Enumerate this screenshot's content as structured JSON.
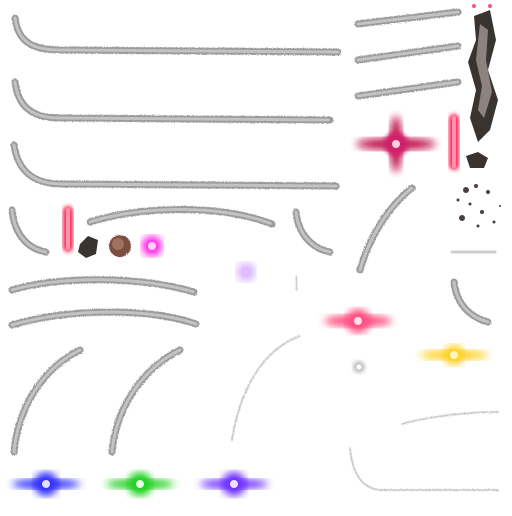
{
  "sheet": {
    "title": "",
    "background": "#ffffff"
  },
  "colors": {
    "streak_dark": "#7a7a7a",
    "streak_light": "#c8c8c8",
    "rock": "#3a3431",
    "rock_light": "#8c8380",
    "dirt": "#7a5040",
    "magenta": "#ff1fe0",
    "violet": "#b060ff",
    "crimson": "#c0104a",
    "red": "#ff2050",
    "pink": "#ff5080",
    "gold": "#ffd020",
    "blue": "#3030ff",
    "green": "#20d020",
    "purple": "#7030ff"
  },
  "sprites": {
    "slash_trails": "slash-trail",
    "flares": [
      "crimson-star-flare",
      "pink-lens-flare",
      "gold-lens-flare",
      "blue-lens-flare",
      "green-lens-flare",
      "purple-lens-flare"
    ],
    "orbs": [
      "magenta-orb",
      "violet-spark",
      "grey-ring"
    ],
    "debris": [
      "rock-column",
      "rock-chunk",
      "dirt-clump",
      "debris-scatter"
    ],
    "beams": [
      "red-beam-vertical",
      "red-beam-small"
    ]
  }
}
